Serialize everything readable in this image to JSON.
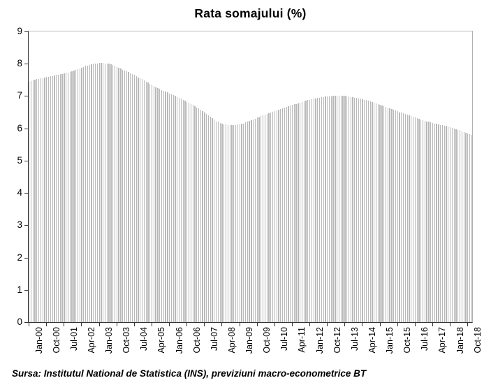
{
  "title": "Rata somajului (%)",
  "source_note": "Sursa: Institutul National de Statistica (INS), previziuni macro-econometrice BT",
  "colors": {
    "background": "#ffffff",
    "bar": "#b8b8b8",
    "plot_border": "#b0b0b0",
    "axis": "#333333",
    "text": "#000000"
  },
  "chart_data": {
    "type": "bar",
    "title": "Rata somajului (%)",
    "xlabel": "",
    "ylabel": "",
    "x_start": "Jan-00",
    "x_end": "Dec-18",
    "frequency": "monthly",
    "x_tick_interval_months": 9,
    "x_tick_labels": [
      "Jan-00",
      "Oct-00",
      "Jul-01",
      "Apr-02",
      "Jan-03",
      "Oct-03",
      "Jul-04",
      "Apr-05",
      "Jan-06",
      "Oct-06",
      "Jul-07",
      "Apr-08",
      "Jan-09",
      "Oct-09",
      "Jul-10",
      "Apr-11",
      "Jan-12",
      "Oct-12",
      "Jul-13",
      "Apr-14",
      "Jan-15",
      "Oct-15",
      "Jul-16",
      "Apr-17",
      "Jan-18",
      "Oct-18"
    ],
    "ylim": [
      0,
      9
    ],
    "y_ticks": [
      0,
      1,
      2,
      3,
      4,
      5,
      6,
      7,
      8,
      9
    ],
    "grid": false,
    "legend": false,
    "values": [
      7.45,
      7.47,
      7.48,
      7.5,
      7.52,
      7.53,
      7.55,
      7.56,
      7.57,
      7.59,
      7.6,
      7.61,
      7.62,
      7.63,
      7.65,
      7.66,
      7.67,
      7.69,
      7.7,
      7.72,
      7.73,
      7.75,
      7.77,
      7.78,
      7.8,
      7.83,
      7.85,
      7.88,
      7.9,
      7.93,
      7.95,
      7.97,
      7.98,
      8.0,
      8.01,
      8.01,
      8.02,
      8.02,
      8.02,
      8.01,
      8.01,
      8.0,
      7.99,
      7.96,
      7.93,
      7.9,
      7.88,
      7.85,
      7.82,
      7.79,
      7.76,
      7.74,
      7.71,
      7.68,
      7.65,
      7.62,
      7.58,
      7.55,
      7.52,
      7.48,
      7.45,
      7.42,
      7.38,
      7.35,
      7.32,
      7.28,
      7.25,
      7.22,
      7.19,
      7.17,
      7.14,
      7.11,
      7.08,
      7.05,
      7.03,
      7.0,
      6.97,
      6.95,
      6.92,
      6.89,
      6.85,
      6.82,
      6.79,
      6.75,
      6.72,
      6.68,
      6.65,
      6.61,
      6.57,
      6.54,
      6.5,
      6.45,
      6.41,
      6.36,
      6.31,
      6.27,
      6.22,
      6.2,
      6.17,
      6.15,
      6.12,
      6.12,
      6.11,
      6.1,
      6.1,
      6.1,
      6.11,
      6.12,
      6.13,
      6.14,
      6.15,
      6.18,
      6.2,
      6.23,
      6.25,
      6.28,
      6.3,
      6.33,
      6.35,
      6.38,
      6.4,
      6.43,
      6.45,
      6.47,
      6.49,
      6.52,
      6.54,
      6.56,
      6.58,
      6.6,
      6.62,
      6.64,
      6.66,
      6.68,
      6.7,
      6.72,
      6.74,
      6.76,
      6.78,
      6.8,
      6.82,
      6.84,
      6.85,
      6.87,
      6.89,
      6.9,
      6.92,
      6.93,
      6.94,
      6.95,
      6.96,
      6.97,
      6.98,
      6.98,
      6.99,
      6.99,
      7.0,
      7.0,
      7.0,
      7.0,
      7.0,
      7.0,
      7.0,
      6.99,
      6.98,
      6.97,
      6.96,
      6.95,
      6.94,
      6.93,
      6.92,
      6.9,
      6.88,
      6.87,
      6.85,
      6.83,
      6.82,
      6.79,
      6.77,
      6.75,
      6.72,
      6.7,
      6.68,
      6.66,
      6.63,
      6.61,
      6.59,
      6.57,
      6.55,
      6.53,
      6.5,
      6.48,
      6.46,
      6.44,
      6.42,
      6.4,
      6.38,
      6.36,
      6.34,
      6.32,
      6.3,
      6.28,
      6.26,
      6.24,
      6.22,
      6.2,
      6.18,
      6.17,
      6.15,
      6.14,
      6.13,
      6.11,
      6.1,
      6.08,
      6.07,
      6.05,
      6.03,
      6.02,
      6.0,
      5.98,
      5.96,
      5.94,
      5.91,
      5.89,
      5.87,
      5.85,
      5.82,
      5.8
    ]
  }
}
